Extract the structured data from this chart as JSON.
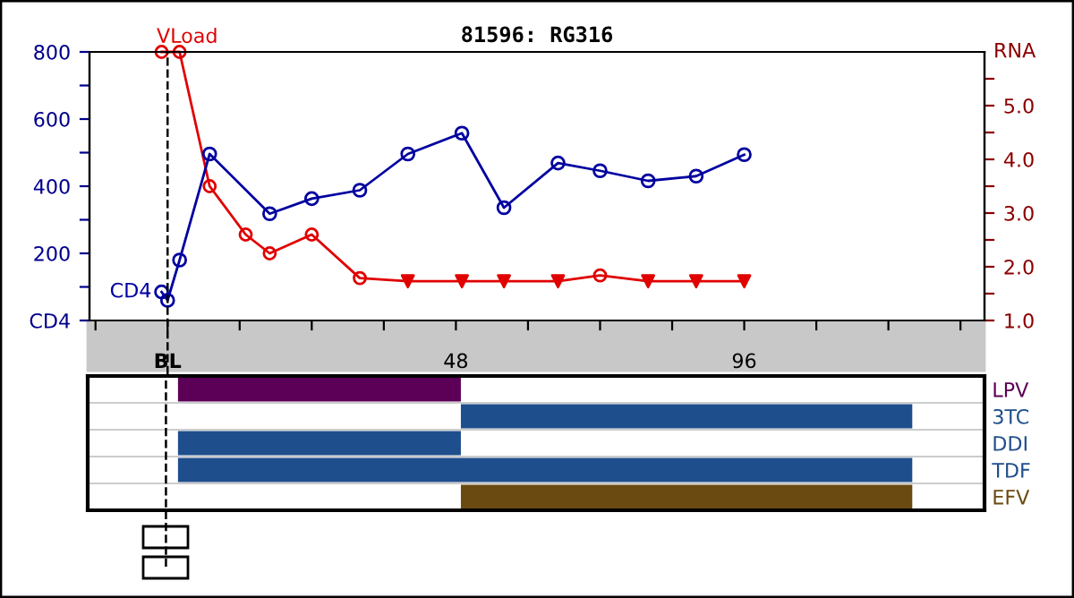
{
  "chart_data": [
    {
      "type": "line",
      "title": "81596: RG316",
      "y2label": "RNA",
      "xlim": [
        -13,
        136
      ],
      "xticks": [
        {
          "value": -12,
          "label": null
        },
        {
          "value": 0,
          "label": "BL"
        },
        {
          "value": 12,
          "label": null
        },
        {
          "value": 24,
          "label": null
        },
        {
          "value": 36,
          "label": null
        },
        48,
        {
          "value": 60,
          "label": null
        },
        {
          "value": 72,
          "label": null
        },
        {
          "value": 84,
          "label": null
        },
        96,
        {
          "value": 108,
          "label": null
        },
        {
          "value": 120,
          "label": null
        },
        {
          "value": 132,
          "label": null
        }
      ],
      "ylim": [
        0,
        800
      ],
      "yticks": [
        {
          "value": 0,
          "label": "CD4"
        },
        {
          "value": 100,
          "label": null
        },
        200,
        {
          "value": 300,
          "label": null
        },
        400,
        {
          "value": 500,
          "label": null
        },
        600,
        {
          "value": 700,
          "label": null
        },
        800
      ],
      "y2lim": [
        1.0,
        6.0
      ],
      "y2ticks": [
        {
          "value": 1.0,
          "label": "1.0"
        },
        {
          "value": 1.5,
          "label": null
        },
        {
          "value": 2.0,
          "label": "2.0"
        },
        {
          "value": 2.5,
          "label": null
        },
        {
          "value": 3.0,
          "label": "3.0"
        },
        {
          "value": 3.5,
          "label": null
        },
        {
          "value": 4.0,
          "label": "4.0"
        },
        {
          "value": 4.5,
          "label": null
        },
        {
          "value": 5.0,
          "label": "5.0"
        },
        {
          "value": 5.5,
          "label": null
        }
      ],
      "grid": false,
      "legend": false,
      "ref_lines": [
        {
          "axis": "x",
          "value": 0,
          "line_style": "dashed",
          "color": "#000000"
        }
      ],
      "series": [
        {
          "name": "CD4",
          "color": "#0000a0",
          "marker": "circle",
          "x": [
            -1,
            0,
            2,
            7,
            17,
            24,
            32,
            40,
            49,
            56,
            65,
            72,
            80,
            88,
            96
          ],
          "values": [
            85,
            60,
            180,
            496,
            318,
            363,
            388,
            496,
            558,
            336,
            469,
            446,
            416,
            430,
            494
          ]
        },
        {
          "name": "VLoad",
          "color": "#e00000",
          "marker": "none",
          "axis": "y2",
          "x": [
            -1,
            2,
            7,
            13,
            17,
            24,
            32,
            40,
            49,
            56,
            65,
            72,
            80,
            88,
            96
          ],
          "values": [
            6.0,
            6.0,
            3.5,
            2.6,
            2.25,
            2.6,
            1.79,
            1.73,
            1.73,
            1.73,
            1.73,
            1.84,
            1.73,
            1.73,
            1.73
          ]
        },
        {
          "type": "scatter",
          "color": "#e00000",
          "marker": "circle",
          "axis": "y2",
          "x": [
            -1,
            2,
            7,
            13,
            17,
            24,
            32,
            72
          ],
          "values": [
            6.0,
            6.0,
            3.5,
            2.6,
            2.25,
            2.6,
            1.79,
            1.84
          ]
        },
        {
          "type": "scatter",
          "color": "#e00000",
          "marker": "triangle",
          "axis": "y2",
          "x": [
            40,
            49,
            56,
            65,
            80,
            88,
            96
          ],
          "values": [
            1.73,
            1.73,
            1.73,
            1.73,
            1.73,
            1.73,
            1.73
          ]
        }
      ]
    },
    {
      "type": "bar",
      "orientation": "horizontal",
      "tick_labels": "y",
      "xlim": [
        -13,
        136
      ],
      "categories": [
        "LPV",
        "3TC",
        "DDI",
        "TDF",
        "EFV"
      ],
      "base": [
        2,
        49,
        2,
        2,
        49
      ],
      "values": [
        47,
        75,
        47,
        122,
        75
      ],
      "colors": [
        "#5c0057",
        "#1f4e8c",
        "#1f4e8c",
        "#1f4e8c",
        "#6b4a12"
      ],
      "ref_lines": [
        {
          "axis": "x",
          "value": 0,
          "line_style": "dashed",
          "color": "#000000"
        }
      ]
    }
  ]
}
